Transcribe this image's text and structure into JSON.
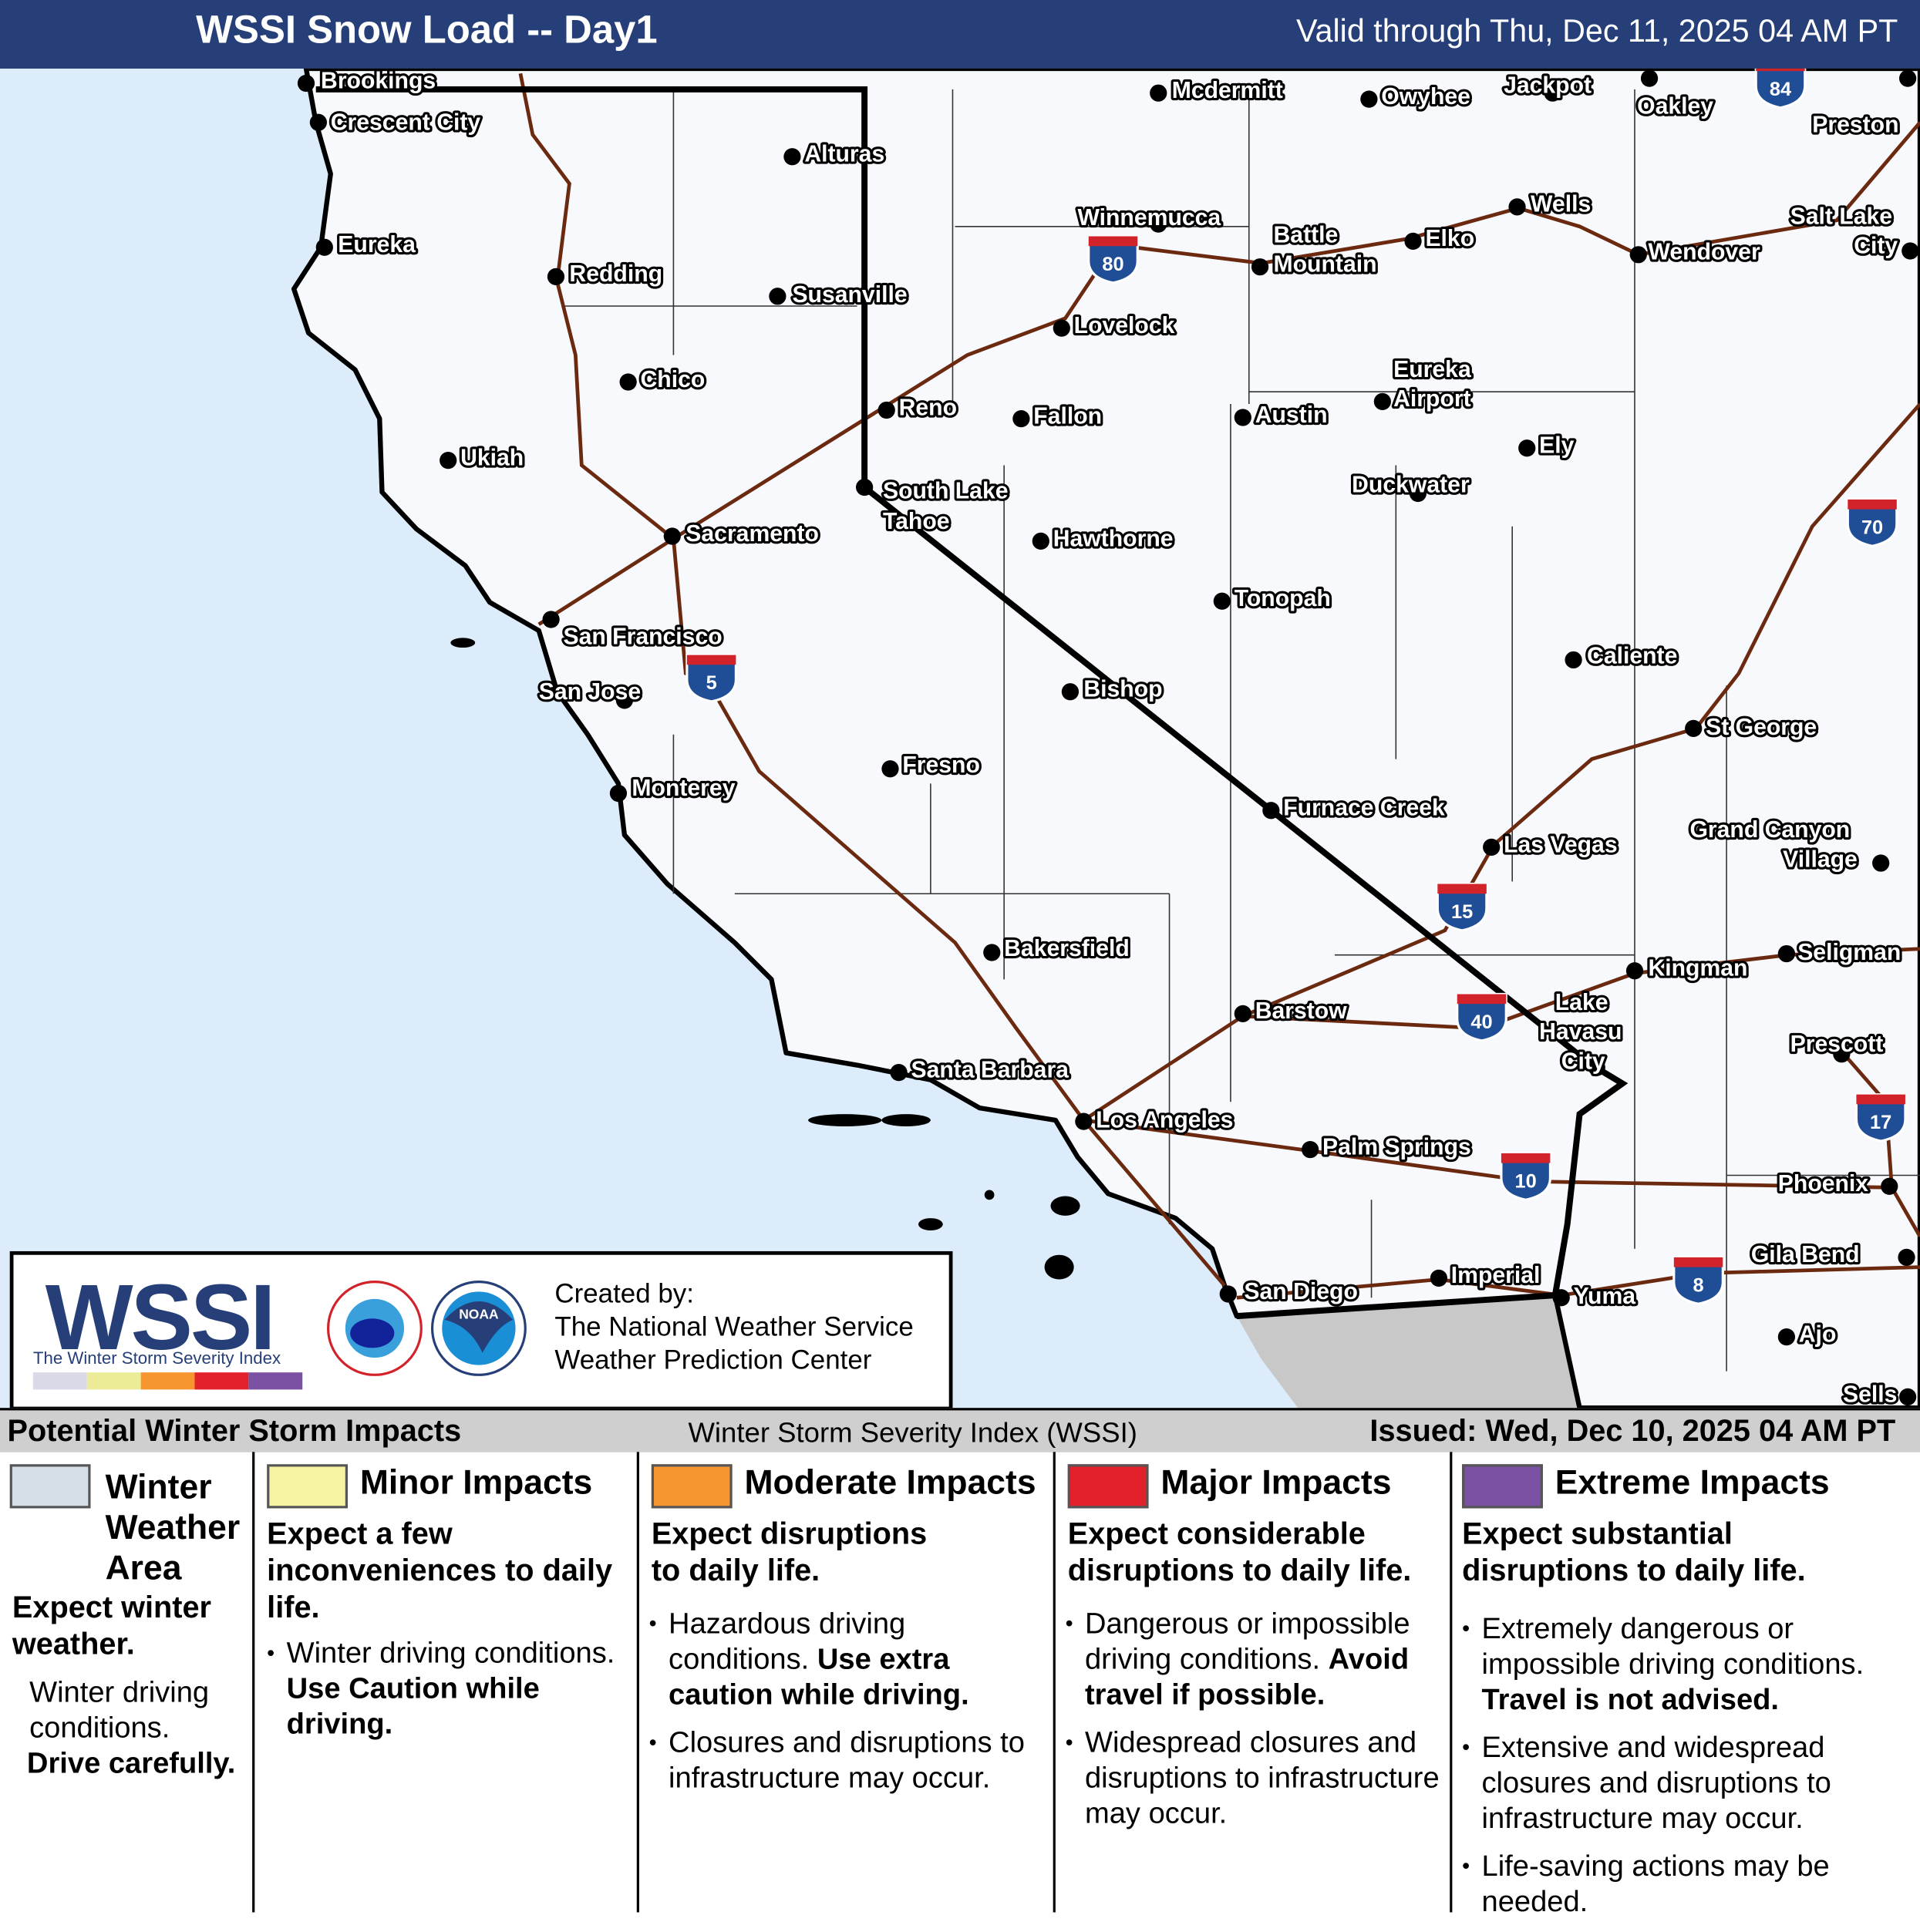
{
  "header": {
    "title": "WSSI Snow Load -- Day1",
    "valid": "Valid through Thu, Dec 11, 2025 04 AM PT"
  },
  "colors": {
    "ocean": "#dcecfb",
    "land": "#f8f9fc",
    "mexico": "#c8c8c8",
    "state_border": "#000000",
    "interstate": "#6b2a10",
    "shield": "#1f4e96",
    "shield_top": "#d3232a",
    "winter_weather_area": "#d6dee6",
    "minor": "#f6f3a3",
    "moderate": "#f7962f",
    "major": "#e3212b",
    "extreme": "#7b52a3"
  },
  "cities": [
    "Brookings",
    "Crescent City",
    "Alturas",
    "Eureka",
    "Redding",
    "Susanville",
    "Chico",
    "Ukiah",
    "Reno",
    "Sacramento",
    "South Lake",
    "Tahoe",
    "San Francisco",
    "San Jose",
    "Monterey",
    "Fresno",
    "Bakersfield",
    "Santa Barbara",
    "Los Angeles",
    "San Diego",
    "Imperial",
    "Yuma",
    "Palm Springs",
    "Barstow",
    "Lake",
    "Havasu",
    "City",
    "Las Vegas",
    "Furnace Creek",
    "Bishop",
    "Hawthorne",
    "Tonopah",
    "Fallon",
    "Lovelock",
    "Winnemucca",
    "Battle",
    "Mountain",
    "Elko",
    "Wells",
    "Austin",
    "Eureka",
    "Airport",
    "Ely",
    "Duckwater",
    "Caliente",
    "St George",
    "Grand Canyon",
    "Village",
    "Kingman",
    "Seligman",
    "Prescott",
    "Phoenix",
    "Gila Bend",
    "Ajo",
    "Sells",
    "Wendover",
    "Salt Lake",
    "City",
    "Oakley",
    "Preston",
    "Owyhee",
    "Jackpot",
    "Mcdermitt"
  ],
  "interstates": [
    "84",
    "80",
    "5",
    "70",
    "15",
    "40",
    "17",
    "10",
    "8"
  ],
  "logo": {
    "wordmark": "WSSI",
    "tagline": "The Winter Storm Severity Index",
    "created_by": "Created by:",
    "org1": "The National Weather Service",
    "org2": "Weather Prediction Center",
    "nws": "NATIONAL WEATHER SERVICE",
    "noaa": "NOAA"
  },
  "legend": {
    "title": "Potential Winter Storm Impacts",
    "subtitle": "Winter Storm Severity Index (WSSI)",
    "issued": "Issued: Wed, Dec 10, 2025 04 AM PT",
    "categories": [
      {
        "name": "Winter Weather Area",
        "summary": "Expect winter weather.",
        "bullets": [
          "Winter driving conditions."
        ],
        "bold": [
          "Drive carefully."
        ]
      },
      {
        "name": "Minor Impacts",
        "summary": "Expect a few inconveniences to daily life.",
        "bullets": [
          "Winter driving conditions. "
        ],
        "bold": [
          "Use Caution while driving."
        ]
      },
      {
        "name": "Moderate Impacts",
        "summary": "Expect disruptions to daily life.",
        "bullets": [
          "Hazardous driving conditions. ",
          "Closures and disruptions to infrastructure may occur."
        ],
        "bold": [
          "Use extra caution while driving."
        ]
      },
      {
        "name": "Major Impacts",
        "summary": "Expect considerable disruptions to daily life.",
        "bullets": [
          "Dangerous or impossible driving conditions. ",
          "Widespread closures and disruptions to infrastructure may occur."
        ],
        "bold": [
          "Avoid travel if possible."
        ]
      },
      {
        "name": "Extreme Impacts",
        "summary": "Expect substantial disruptions to daily life.",
        "bullets": [
          "Extremely dangerous or impossible driving conditions. ",
          "Extensive and widespread closures and disruptions to infrastructure may occur.",
          "Life-saving actions may be needed."
        ],
        "bold": [
          "Travel is not advised."
        ]
      }
    ]
  }
}
